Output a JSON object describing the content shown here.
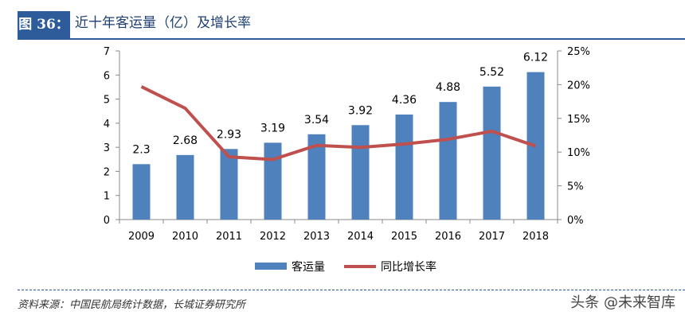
{
  "header": {
    "tag": "图 36：",
    "title": "近十年客运量（亿）及增长率"
  },
  "source": "资料来源：中国民航局统计数据，长城证券研究所",
  "watermark": "头条 @未来智库",
  "chart_data": {
    "type": "bar+line",
    "categories": [
      "2009",
      "2010",
      "2011",
      "2012",
      "2013",
      "2014",
      "2015",
      "2016",
      "2017",
      "2018"
    ],
    "series": [
      {
        "name": "客运量",
        "type": "bar",
        "axis": "left",
        "color": "#4f81bd",
        "values": [
          2.3,
          2.68,
          2.93,
          3.19,
          3.54,
          3.92,
          4.36,
          4.88,
          5.52,
          6.12
        ],
        "labels": [
          "2.3",
          "2.68",
          "2.93",
          "3.19",
          "3.54",
          "3.92",
          "4.36",
          "4.88",
          "5.52",
          "6.12"
        ]
      },
      {
        "name": "同比增长率",
        "type": "line",
        "axis": "right",
        "color": "#c0504d",
        "values": [
          19.7,
          16.5,
          9.3,
          8.9,
          11.0,
          10.7,
          11.2,
          11.9,
          13.1,
          10.9
        ]
      }
    ],
    "ylim": [
      0,
      7
    ],
    "yticks": [
      "0",
      "1",
      "2",
      "3",
      "4",
      "5",
      "6",
      "7"
    ],
    "y2lim": [
      0,
      25
    ],
    "y2ticks": [
      "0%",
      "5%",
      "10%",
      "15%",
      "20%",
      "25%"
    ],
    "legend": "bottom",
    "grid": false
  }
}
